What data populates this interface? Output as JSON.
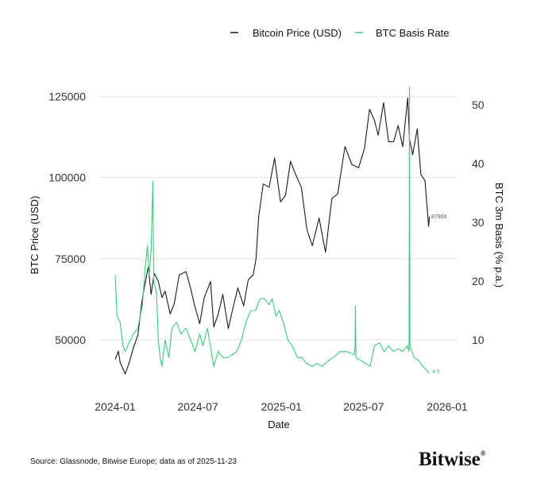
{
  "chart_data": {
    "type": "line",
    "xlabel": "Date",
    "ylabel": "BTC Price (USD)",
    "y2label": "BTC 3m Basis (% p.a.)",
    "x_ticks": [
      "2024-01",
      "2024-07",
      "2025-01",
      "2025-07",
      "2026-01"
    ],
    "y_ticks": [
      "50000",
      "75000",
      "100000",
      "125000"
    ],
    "y2_ticks": [
      "10",
      "20",
      "30",
      "40",
      "50"
    ],
    "xlim": [
      "2024-01-01",
      "2026-01-01"
    ],
    "ylim": [
      37000,
      127000
    ],
    "y2lim": [
      3,
      53
    ],
    "grid": "horizontal",
    "legend_position": "top",
    "series": [
      {
        "name": "Bitcoin Price (USD)",
        "axis": "left",
        "color": "#1a1a1a",
        "end_label": "87966",
        "points": [
          [
            "2024-01-01",
            44000
          ],
          [
            "2024-01-08",
            46500
          ],
          [
            "2024-01-12",
            43000
          ],
          [
            "2024-01-23",
            39500
          ],
          [
            "2024-02-01",
            43000
          ],
          [
            "2024-02-10",
            47500
          ],
          [
            "2024-02-20",
            51500
          ],
          [
            "2024-02-28",
            61000
          ],
          [
            "2024-03-05",
            66000
          ],
          [
            "2024-03-14",
            72500
          ],
          [
            "2024-03-20",
            64000
          ],
          [
            "2024-03-27",
            70500
          ],
          [
            "2024-04-05",
            68000
          ],
          [
            "2024-04-13",
            63000
          ],
          [
            "2024-04-20",
            65000
          ],
          [
            "2024-05-01",
            58000
          ],
          [
            "2024-05-10",
            61000
          ],
          [
            "2024-05-21",
            70000
          ],
          [
            "2024-06-05",
            71000
          ],
          [
            "2024-06-15",
            66000
          ],
          [
            "2024-06-24",
            60500
          ],
          [
            "2024-07-05",
            55000
          ],
          [
            "2024-07-15",
            63000
          ],
          [
            "2024-07-29",
            68000
          ],
          [
            "2024-08-05",
            54000
          ],
          [
            "2024-08-15",
            58000
          ],
          [
            "2024-08-25",
            64000
          ],
          [
            "2024-09-06",
            53500
          ],
          [
            "2024-09-15",
            59000
          ],
          [
            "2024-09-27",
            66000
          ],
          [
            "2024-10-10",
            60500
          ],
          [
            "2024-10-20",
            68500
          ],
          [
            "2024-10-31",
            70000
          ],
          [
            "2024-11-06",
            75000
          ],
          [
            "2024-11-12",
            88000
          ],
          [
            "2024-11-22",
            98000
          ],
          [
            "2024-12-05",
            97000
          ],
          [
            "2024-12-17",
            106000
          ],
          [
            "2024-12-30",
            92500
          ],
          [
            "2025-01-10",
            94500
          ],
          [
            "2025-01-21",
            105000
          ],
          [
            "2025-02-01",
            101000
          ],
          [
            "2025-02-14",
            97000
          ],
          [
            "2025-02-26",
            84000
          ],
          [
            "2025-03-10",
            79000
          ],
          [
            "2025-03-25",
            87500
          ],
          [
            "2025-04-08",
            77000
          ],
          [
            "2025-04-22",
            93500
          ],
          [
            "2025-05-05",
            95000
          ],
          [
            "2025-05-21",
            109500
          ],
          [
            "2025-06-05",
            104000
          ],
          [
            "2025-06-20",
            103000
          ],
          [
            "2025-07-03",
            109000
          ],
          [
            "2025-07-14",
            121000
          ],
          [
            "2025-07-25",
            117500
          ],
          [
            "2025-08-02",
            113000
          ],
          [
            "2025-08-14",
            123000
          ],
          [
            "2025-08-25",
            111000
          ],
          [
            "2025-09-05",
            111000
          ],
          [
            "2025-09-15",
            116000
          ],
          [
            "2025-09-25",
            109500
          ],
          [
            "2025-10-06",
            124500
          ],
          [
            "2025-10-10",
            112000
          ],
          [
            "2025-10-17",
            107000
          ],
          [
            "2025-10-27",
            115000
          ],
          [
            "2025-11-04",
            101000
          ],
          [
            "2025-11-13",
            99000
          ],
          [
            "2025-11-17",
            92000
          ],
          [
            "2025-11-21",
            85000
          ],
          [
            "2025-11-23",
            87966
          ]
        ]
      },
      {
        "name": "BTC Basis Rate",
        "axis": "right",
        "color": "#3dc97c",
        "end_label": "4.5",
        "points": [
          [
            "2024-01-01",
            21
          ],
          [
            "2024-01-05",
            14
          ],
          [
            "2024-01-12",
            13
          ],
          [
            "2024-01-18",
            9
          ],
          [
            "2024-01-23",
            8
          ],
          [
            "2024-02-01",
            9.5
          ],
          [
            "2024-02-10",
            11
          ],
          [
            "2024-02-20",
            12
          ],
          [
            "2024-03-01",
            16
          ],
          [
            "2024-03-08",
            23
          ],
          [
            "2024-03-12",
            26
          ],
          [
            "2024-03-16",
            21
          ],
          [
            "2024-03-20",
            25
          ],
          [
            "2024-03-24",
            37
          ],
          [
            "2024-03-26",
            20
          ],
          [
            "2024-04-01",
            18
          ],
          [
            "2024-04-05",
            10
          ],
          [
            "2024-04-09",
            7
          ],
          [
            "2024-04-13",
            5.5
          ],
          [
            "2024-04-20",
            10
          ],
          [
            "2024-04-28",
            7
          ],
          [
            "2024-05-05",
            12
          ],
          [
            "2024-05-15",
            13
          ],
          [
            "2024-05-25",
            11
          ],
          [
            "2024-06-05",
            12
          ],
          [
            "2024-06-15",
            10
          ],
          [
            "2024-06-25",
            8
          ],
          [
            "2024-07-05",
            11
          ],
          [
            "2024-07-12",
            9
          ],
          [
            "2024-07-22",
            12
          ],
          [
            "2024-08-05",
            5.5
          ],
          [
            "2024-08-15",
            8
          ],
          [
            "2024-08-25",
            7
          ],
          [
            "2024-09-05",
            7
          ],
          [
            "2024-09-15",
            7.5
          ],
          [
            "2024-09-25",
            8
          ],
          [
            "2024-10-05",
            10
          ],
          [
            "2024-10-15",
            13
          ],
          [
            "2024-10-25",
            15
          ],
          [
            "2024-11-05",
            15
          ],
          [
            "2024-11-15",
            17
          ],
          [
            "2024-11-25",
            17
          ],
          [
            "2024-12-05",
            16
          ],
          [
            "2024-12-12",
            17
          ],
          [
            "2024-12-20",
            14
          ],
          [
            "2024-12-27",
            15
          ],
          [
            "2025-01-05",
            13
          ],
          [
            "2025-01-15",
            10
          ],
          [
            "2025-01-25",
            9
          ],
          [
            "2025-02-05",
            7
          ],
          [
            "2025-02-15",
            7
          ],
          [
            "2025-02-25",
            6
          ],
          [
            "2025-03-10",
            5.5
          ],
          [
            "2025-03-20",
            6
          ],
          [
            "2025-04-01",
            5.5
          ],
          [
            "2025-04-15",
            6.5
          ],
          [
            "2025-04-25",
            7
          ],
          [
            "2025-05-10",
            8
          ],
          [
            "2025-05-25",
            8
          ],
          [
            "2025-06-10",
            7.5
          ],
          [
            "2025-06-12",
            8.5
          ],
          [
            "2025-06-13",
            15.8
          ],
          [
            "2025-06-14",
            7
          ],
          [
            "2025-07-05",
            6
          ],
          [
            "2025-07-15",
            5.5
          ],
          [
            "2025-07-25",
            9
          ],
          [
            "2025-08-05",
            9.5
          ],
          [
            "2025-08-15",
            8
          ],
          [
            "2025-08-25",
            9
          ],
          [
            "2025-09-05",
            8
          ],
          [
            "2025-09-15",
            8.5
          ],
          [
            "2025-09-25",
            8
          ],
          [
            "2025-10-05",
            9
          ],
          [
            "2025-10-09",
            8
          ],
          [
            "2025-10-10",
            53
          ],
          [
            "2025-10-11",
            9
          ],
          [
            "2025-10-20",
            7
          ],
          [
            "2025-10-30",
            6.5
          ],
          [
            "2025-11-08",
            5.5
          ],
          [
            "2025-11-15",
            5
          ],
          [
            "2025-11-20",
            4.5
          ],
          [
            "2025-11-23",
            4.5
          ]
        ]
      }
    ]
  },
  "footer": {
    "source": "Source: Glassnode, Bitwise Europe; data as of 2025-11-23",
    "logo_text": "Bitwise®"
  }
}
